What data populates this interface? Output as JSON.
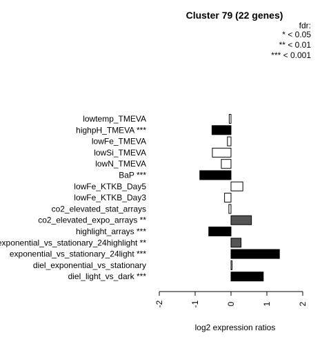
{
  "chart_data": {
    "type": "bar",
    "orientation": "horizontal",
    "title": "Cluster 79 (22 genes)",
    "xlabel": "log2 expression ratios",
    "ylabel": "",
    "xlim": [
      -2,
      2
    ],
    "xticks": [
      "-2",
      "-1",
      "0",
      "1",
      "2"
    ],
    "legend": {
      "title": "fdr:",
      "entries": [
        "* < 0.05",
        "** < 0.01",
        "*** < 0.001"
      ],
      "placement": "top-right"
    },
    "categories": [
      "lowtemp_TMEVA",
      "highpH_TMEVA ***",
      "lowFe_TMEVA",
      "lowSi_TMEVA",
      "lowN_TMEVA",
      "BaP ***",
      "lowFe_KTKB_Day5",
      "lowFe_KTKB_Day3",
      "co2_elevated_stat_arrays",
      "co2_elevated_expo_arrays **",
      "highlight_arrays ***",
      "exponential_vs_stationary_24highlight **",
      "exponential_vs_stationary_24light ***",
      "diel_exponential_vs_stationary",
      "diel_light_vs_dark ***"
    ],
    "values": [
      -0.05,
      -0.53,
      -0.1,
      -0.52,
      -0.27,
      -0.87,
      0.33,
      -0.18,
      -0.06,
      0.57,
      -0.62,
      0.28,
      1.35,
      0.02,
      0.9
    ],
    "bar_colors": [
      "#ffffff",
      "#000000",
      "#ffffff",
      "#ffffff",
      "#ffffff",
      "#000000",
      "#ffffff",
      "#ffffff",
      "#ffffff",
      "#555555",
      "#000000",
      "#555555",
      "#000000",
      "#ffffff",
      "#000000"
    ],
    "grid": false
  }
}
